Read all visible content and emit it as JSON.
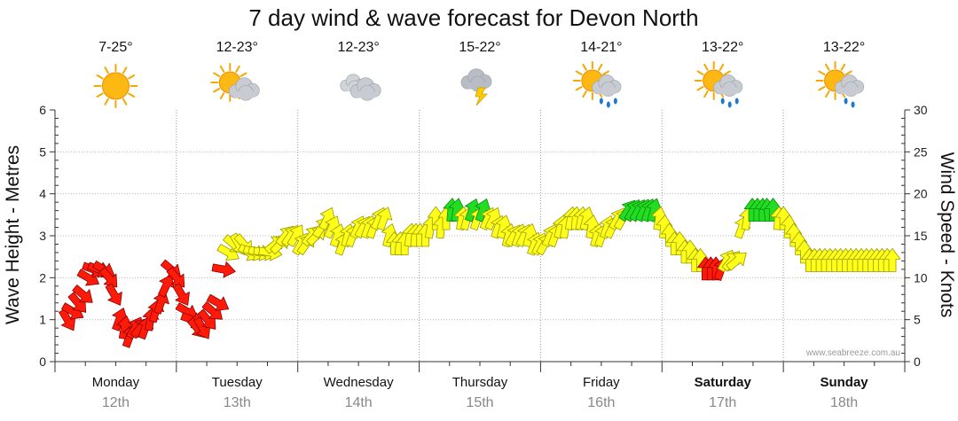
{
  "chart_data": {
    "type": "scatter",
    "title": "7 day wind & wave forecast for Devon North",
    "ylabel_left": "Wave Height - Metres",
    "ylabel_right": "Wind Speed - Knots",
    "ylim_left": [
      0,
      6
    ],
    "ylim_right": [
      0,
      30
    ],
    "yticks_left": [
      "0",
      "1",
      "2",
      "3",
      "4",
      "5",
      "6"
    ],
    "yticks_right": [
      "0",
      "5",
      "10",
      "15",
      "20",
      "25",
      "30"
    ],
    "grid": true,
    "credit": "www.seabreeze.com.au",
    "days": [
      {
        "name": "Monday",
        "date": "12th",
        "temp": "7-25°",
        "icon": "sunny-icon",
        "bold": false
      },
      {
        "name": "Tuesday",
        "date": "13th",
        "temp": "12-23°",
        "icon": "partly-cloudy-icon",
        "bold": false
      },
      {
        "name": "Wednesday",
        "date": "14th",
        "temp": "12-23°",
        "icon": "cloudy-icon",
        "bold": false
      },
      {
        "name": "Thursday",
        "date": "15th",
        "temp": "15-22°",
        "icon": "thunderstorm-icon",
        "bold": false
      },
      {
        "name": "Friday",
        "date": "16th",
        "temp": "14-21°",
        "icon": "showers-icon",
        "bold": false
      },
      {
        "name": "Saturday",
        "date": "17th",
        "temp": "13-22°",
        "icon": "showers-icon",
        "bold": true
      },
      {
        "name": "Sunday",
        "date": "18th",
        "temp": "13-22°",
        "icon": "light-showers-icon",
        "bold": true
      }
    ],
    "colors": {
      "low": "#ff1a0a",
      "mid": "#ffff1a",
      "high": "#22dd22"
    },
    "series": [
      {
        "kind": "wind-arrows",
        "direction_deg": [
          330,
          300,
          320,
          310,
          300,
          290,
          290,
          300,
          320,
          330,
          200,
          190,
          200,
          210,
          220,
          200,
          190,
          195,
          200,
          205,
          310,
          320,
          330,
          300,
          290,
          320,
          330,
          320,
          310,
          300,
          280,
          300,
          310,
          330,
          320,
          300,
          290,
          285,
          280,
          280,
          230,
          225,
          220,
          215,
          210,
          210,
          215,
          220,
          225,
          215,
          205,
          205,
          200,
          200,
          195,
          200,
          205,
          210,
          200,
          200,
          205,
          200,
          195,
          180,
          185,
          180,
          190,
          185,
          180,
          180,
          190,
          180,
          185,
          180,
          185,
          190,
          190,
          195,
          200,
          200,
          200,
          205,
          205,
          200,
          195,
          195,
          210,
          200,
          205,
          195,
          200,
          205,
          210,
          205,
          200,
          195,
          190,
          190,
          185,
          190,
          195,
          190,
          195,
          200,
          200,
          205,
          210,
          210,
          215,
          210,
          210,
          205,
          200,
          195,
          190,
          185,
          180,
          180,
          180,
          180,
          180,
          180,
          180,
          180,
          180,
          180,
          200,
          210,
          220,
          230,
          200,
          190,
          180,
          180,
          180,
          175,
          180,
          185,
          180,
          185,
          180,
          180,
          180,
          180,
          180,
          180,
          180,
          180,
          180,
          180,
          180,
          180,
          180,
          180,
          180,
          180,
          180,
          180,
          180,
          180
        ],
        "speed_knots": [
          5,
          6,
          7,
          8,
          10,
          11,
          11,
          11,
          10,
          8,
          5,
          4,
          3,
          4,
          4,
          4,
          5,
          6,
          7,
          9,
          11,
          10,
          8,
          6,
          5,
          4,
          4,
          5,
          6,
          7,
          11,
          13,
          14,
          14,
          14,
          13,
          13,
          13,
          13,
          13,
          14,
          14,
          15,
          15,
          15,
          14,
          14,
          15,
          15,
          16,
          17,
          16,
          15,
          14,
          15,
          15,
          16,
          16,
          16,
          16,
          17,
          17,
          15,
          14,
          14,
          14,
          15,
          15,
          15,
          15,
          16,
          17,
          16,
          17,
          18,
          18,
          17,
          17,
          18,
          17,
          18,
          17,
          17,
          16,
          16,
          15,
          15,
          15,
          15,
          15,
          14,
          14,
          14,
          15,
          15,
          16,
          16,
          17,
          17,
          17,
          17,
          16,
          15,
          15,
          16,
          16,
          17,
          17,
          18,
          18,
          18,
          18,
          18,
          18,
          17,
          16,
          15,
          14,
          14,
          13,
          13,
          12,
          12,
          11,
          11,
          11,
          11,
          12,
          12,
          12,
          16,
          17,
          18,
          18,
          18,
          18,
          18,
          17,
          17,
          16,
          15,
          14,
          13,
          12,
          12,
          12,
          12,
          12,
          12,
          12,
          12,
          12,
          12,
          12,
          12,
          12,
          12,
          12,
          12,
          12
        ]
      }
    ]
  }
}
